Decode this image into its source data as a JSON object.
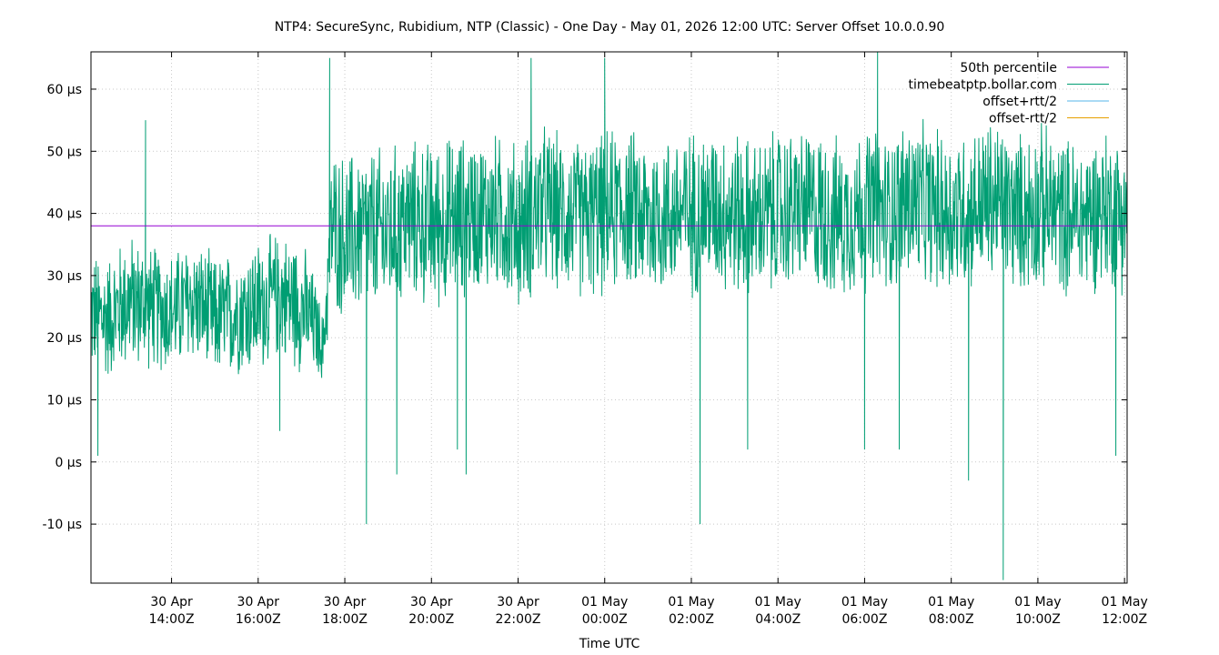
{
  "chart_data": {
    "type": "line",
    "title": "NTP4: SecureSync, Rubidium, NTP (Classic) - One Day - May 01, 2026 12:00 UTC: Server Offset 10.0.0.90",
    "xlabel": "Time UTC",
    "ylabel": "",
    "x_range_hours": [
      12.14,
      36.06
    ],
    "y_range_us": [
      -19.5,
      66
    ],
    "y_ticks": [
      {
        "value": -10,
        "label": "-10 µs"
      },
      {
        "value": 0,
        "label": "0 µs"
      },
      {
        "value": 10,
        "label": "10 µs"
      },
      {
        "value": 20,
        "label": "20 µs"
      },
      {
        "value": 30,
        "label": "30 µs"
      },
      {
        "value": 40,
        "label": "40 µs"
      },
      {
        "value": 50,
        "label": "50 µs"
      },
      {
        "value": 60,
        "label": "60 µs"
      }
    ],
    "x_ticks": [
      {
        "hour": 14,
        "line1": "30 Apr",
        "line2": "14:00Z"
      },
      {
        "hour": 16,
        "line1": "30 Apr",
        "line2": "16:00Z"
      },
      {
        "hour": 18,
        "line1": "30 Apr",
        "line2": "18:00Z"
      },
      {
        "hour": 20,
        "line1": "30 Apr",
        "line2": "20:00Z"
      },
      {
        "hour": 22,
        "line1": "30 Apr",
        "line2": "22:00Z"
      },
      {
        "hour": 24,
        "line1": "01 May",
        "line2": "00:00Z"
      },
      {
        "hour": 26,
        "line1": "01 May",
        "line2": "02:00Z"
      },
      {
        "hour": 28,
        "line1": "01 May",
        "line2": "04:00Z"
      },
      {
        "hour": 30,
        "line1": "01 May",
        "line2": "06:00Z"
      },
      {
        "hour": 32,
        "line1": "01 May",
        "line2": "08:00Z"
      },
      {
        "hour": 34,
        "line1": "01 May",
        "line2": "10:00Z"
      },
      {
        "hour": 36,
        "line1": "01 May",
        "line2": "12:00Z"
      }
    ],
    "grid": true,
    "legend_position": "top-right",
    "series": [
      {
        "name": "50th percentile",
        "color": "#9400d3",
        "y": 38
      },
      {
        "name": "timebeatptp.bollar.com",
        "color": "#009e73",
        "x": [
          12.14,
          12.5,
          13.0,
          13.5,
          14.0,
          14.5,
          15.0,
          15.5,
          16.0,
          16.5,
          17.0,
          17.3,
          17.5,
          17.7,
          18.0,
          18.5,
          19.0,
          19.5,
          20.0,
          20.5,
          21.0,
          21.5,
          22.0,
          22.5,
          23.0,
          23.5,
          24.0,
          24.5,
          25.0,
          25.5,
          26.0,
          26.5,
          27.0,
          27.5,
          28.0,
          28.5,
          29.0,
          29.5,
          30.0,
          30.5,
          31.0,
          31.5,
          32.0,
          32.5,
          33.0,
          33.5,
          34.0,
          34.5,
          35.0,
          35.5,
          36.06
        ],
        "y": [
          24,
          23,
          26,
          25,
          24,
          26,
          23,
          24,
          25,
          27,
          25,
          22,
          18,
          38,
          36,
          37,
          37,
          39,
          38,
          39,
          40,
          40,
          38,
          41,
          40,
          39,
          40,
          41,
          39,
          40,
          40,
          41,
          40,
          39,
          40,
          41,
          40,
          39,
          41,
          40,
          42,
          41,
          40,
          41,
          42,
          40,
          41,
          40,
          39,
          41,
          40
        ],
        "band": [
          11,
          11,
          12,
          11,
          11,
          11,
          11,
          11,
          12,
          11,
          12,
          9,
          6,
          14,
          15,
          15,
          15,
          14,
          15,
          15,
          14,
          14,
          15,
          15,
          14,
          14,
          15,
          14,
          15,
          14,
          15,
          14,
          15,
          14,
          15,
          14,
          15,
          14,
          15,
          14,
          15,
          14,
          15,
          14,
          15,
          14,
          15,
          14,
          14,
          14,
          14
        ],
        "spikes": [
          {
            "x": 12.3,
            "y": 1
          },
          {
            "x": 13.4,
            "y": 55
          },
          {
            "x": 16.5,
            "y": 5
          },
          {
            "x": 17.65,
            "y": 65
          },
          {
            "x": 18.5,
            "y": -10
          },
          {
            "x": 19.2,
            "y": -2
          },
          {
            "x": 20.6,
            "y": 2
          },
          {
            "x": 20.8,
            "y": -2
          },
          {
            "x": 22.3,
            "y": 65
          },
          {
            "x": 24.0,
            "y": 65
          },
          {
            "x": 26.2,
            "y": -10
          },
          {
            "x": 27.3,
            "y": 2
          },
          {
            "x": 30.3,
            "y": 66
          },
          {
            "x": 30.0,
            "y": 2
          },
          {
            "x": 30.8,
            "y": 2
          },
          {
            "x": 32.4,
            "y": -3
          },
          {
            "x": 33.2,
            "y": -19
          },
          {
            "x": 35.8,
            "y": 1
          }
        ]
      },
      {
        "name": "offset+rtt/2",
        "color": "#56b4e9"
      },
      {
        "name": "offset-rtt/2",
        "color": "#e69f00"
      }
    ]
  }
}
